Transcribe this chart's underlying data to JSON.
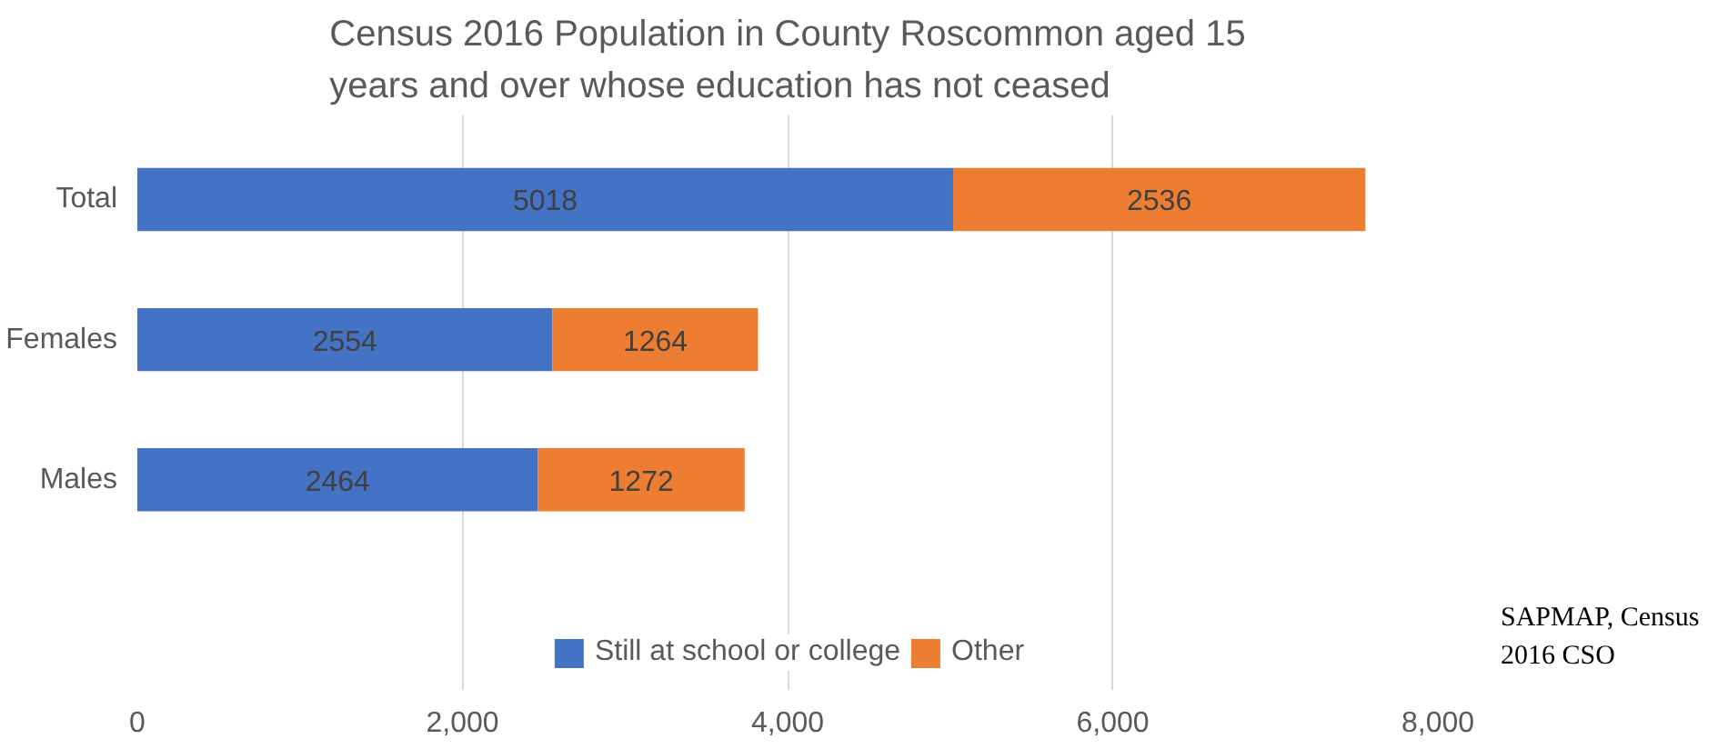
{
  "chart_data": {
    "type": "bar",
    "orientation": "horizontal",
    "stacked": true,
    "title": "Census 2016 Population in County Roscommon aged 15 years and over whose education has not ceased",
    "categories": [
      "Total",
      "Females",
      "Males"
    ],
    "series": [
      {
        "name": "Still at school or college",
        "color": "#4472c4",
        "values": [
          5018,
          2554,
          2464
        ]
      },
      {
        "name": "Other",
        "color": "#ed7d31",
        "values": [
          2536,
          1264,
          1272
        ]
      }
    ],
    "xlim": [
      0,
      8000
    ],
    "xticks": [
      0,
      {
        "value": 2000,
        "label": "2,000"
      },
      {
        "value": 4000,
        "label": "4,000"
      },
      {
        "value": 6000,
        "label": "6,000"
      },
      {
        "value": 8000,
        "label": "8,000"
      }
    ],
    "grid": "x",
    "legend": "bottom",
    "data_labels": true,
    "annotations": [
      "SAPMAP, Census 2016 CSO"
    ]
  }
}
